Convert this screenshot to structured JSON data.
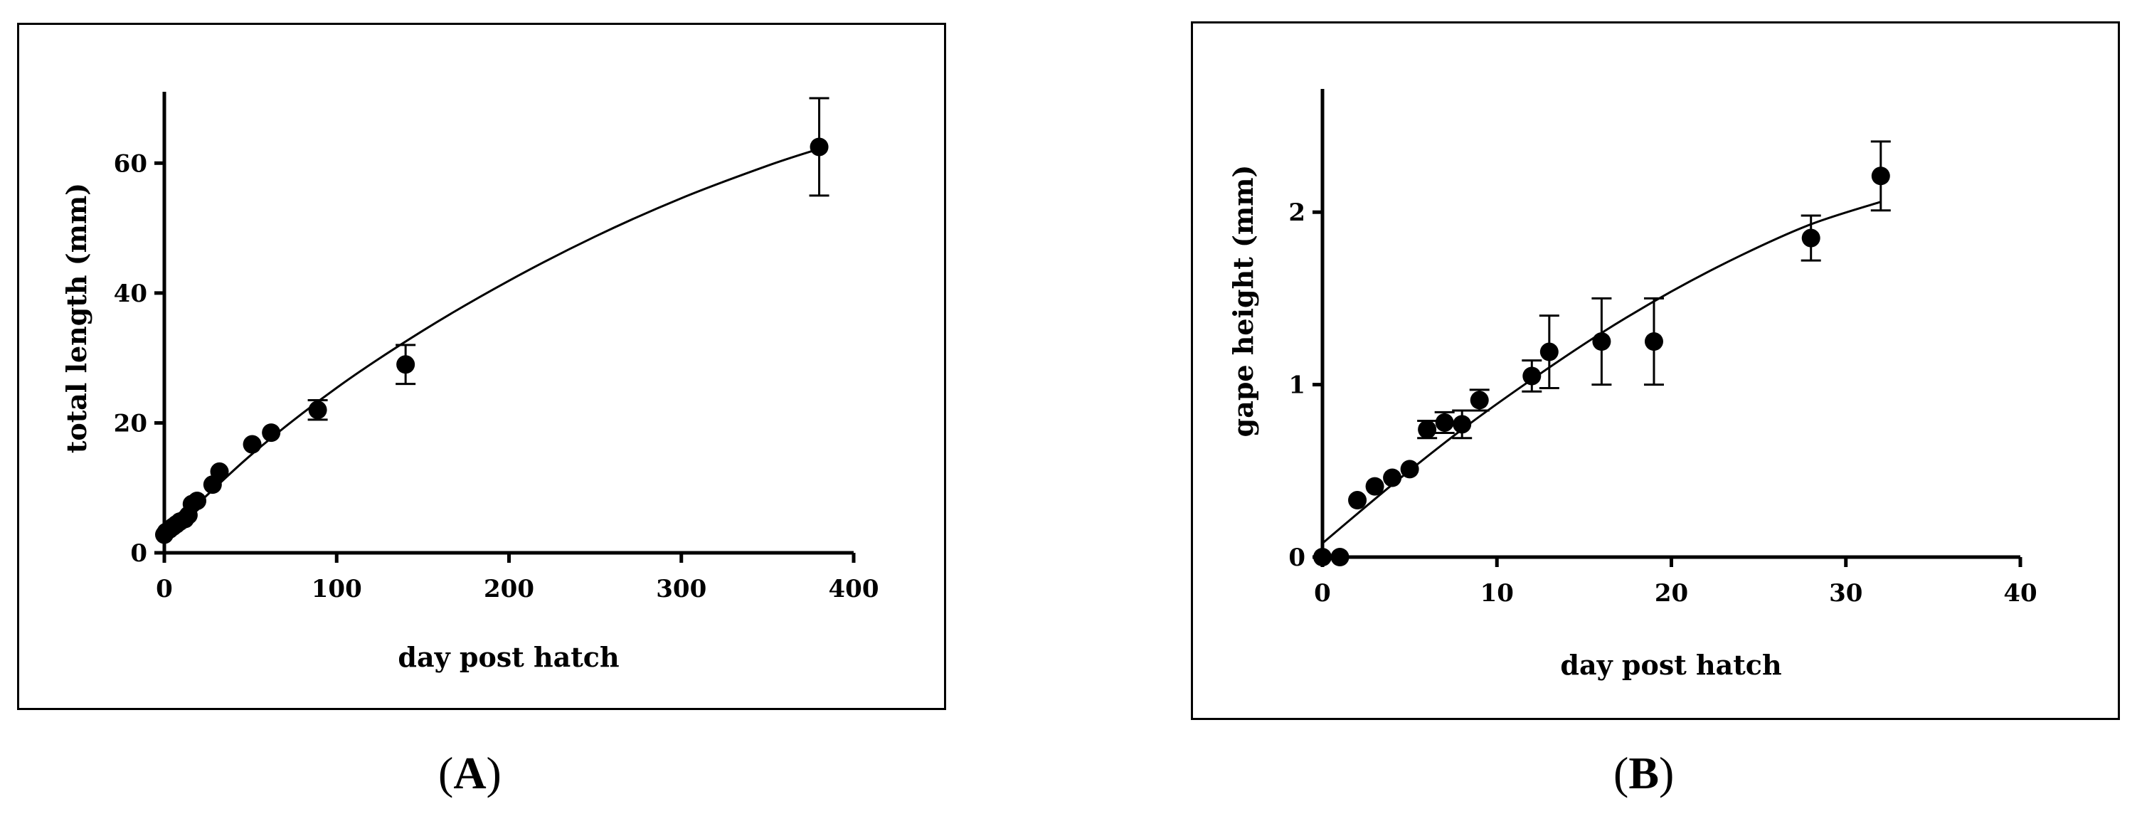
{
  "captions": {
    "a_open": "(",
    "a_letter": "A",
    "a_close": ")",
    "b_open": "(",
    "b_letter": "B",
    "b_close": ")"
  },
  "chart_data": [
    {
      "type": "scatter",
      "panel": "A",
      "xlabel": "day post hatch",
      "ylabel": "total length (mm)",
      "xlim": [
        0,
        400
      ],
      "ylim": [
        0,
        70
      ],
      "xticks": [
        0,
        100,
        200,
        300,
        400
      ],
      "yticks": [
        0,
        20,
        40,
        60
      ],
      "grid": false,
      "series": [
        {
          "points": [
            {
              "x": 0,
              "y": 2.8
            },
            {
              "x": 1,
              "y": 3.2
            },
            {
              "x": 3,
              "y": 3.6
            },
            {
              "x": 5,
              "y": 4.0
            },
            {
              "x": 7,
              "y": 4.4
            },
            {
              "x": 9,
              "y": 4.8
            },
            {
              "x": 12,
              "y": 5.2
            },
            {
              "x": 14,
              "y": 5.8
            },
            {
              "x": 16,
              "y": 7.5
            },
            {
              "x": 19,
              "y": 8.0
            },
            {
              "x": 28,
              "y": 10.5
            },
            {
              "x": 32,
              "y": 12.5
            },
            {
              "x": 51,
              "y": 16.7
            },
            {
              "x": 62,
              "y": 18.5
            },
            {
              "x": 89,
              "y": 22.0,
              "err": 1.5
            },
            {
              "x": 140,
              "y": 29.0,
              "err": 3.0
            },
            {
              "x": 380,
              "y": 62.5,
              "err": 7.5
            }
          ],
          "fit_curve": [
            [
              0,
              2.6
            ],
            [
              50,
              15.0
            ],
            [
              100,
              25.4
            ],
            [
              150,
              34.2
            ],
            [
              200,
              41.9
            ],
            [
              250,
              48.7
            ],
            [
              300,
              54.6
            ],
            [
              350,
              59.6
            ],
            [
              380,
              62.2
            ]
          ]
        }
      ]
    },
    {
      "type": "scatter",
      "panel": "B",
      "xlabel": "day post hatch",
      "ylabel": "gape height (mm)",
      "xlim": [
        0,
        40
      ],
      "ylim": [
        0,
        2.5
      ],
      "xticks": [
        0,
        10,
        20,
        30,
        40
      ],
      "yticks": [
        0,
        1,
        2
      ],
      "grid": false,
      "series": [
        {
          "points": [
            {
              "x": 0,
              "y": 0.0
            },
            {
              "x": 1,
              "y": 0.0
            },
            {
              "x": 2,
              "y": 0.33
            },
            {
              "x": 3,
              "y": 0.41
            },
            {
              "x": 4,
              "y": 0.46
            },
            {
              "x": 5,
              "y": 0.51
            },
            {
              "x": 6,
              "y": 0.74,
              "err": 0.05
            },
            {
              "x": 7,
              "y": 0.78,
              "err": 0.06
            },
            {
              "x": 8,
              "y": 0.77,
              "err": 0.08
            },
            {
              "x": 9,
              "y": 0.91,
              "err": 0.06
            },
            {
              "x": 12,
              "y": 1.05,
              "err": 0.09
            },
            {
              "x": 13,
              "y": 1.19,
              "err": 0.21
            },
            {
              "x": 16,
              "y": 1.25,
              "err": 0.25
            },
            {
              "x": 19,
              "y": 1.25,
              "err": 0.25
            },
            {
              "x": 28,
              "y": 1.85,
              "err": 0.13
            },
            {
              "x": 32,
              "y": 2.21,
              "err": 0.2
            }
          ],
          "fit_curve": [
            [
              0,
              0.08
            ],
            [
              4,
              0.42
            ],
            [
              8,
              0.74
            ],
            [
              12,
              1.03
            ],
            [
              16,
              1.3
            ],
            [
              20,
              1.54
            ],
            [
              24,
              1.75
            ],
            [
              28,
              1.93
            ],
            [
              32,
              2.06
            ]
          ]
        }
      ]
    }
  ]
}
